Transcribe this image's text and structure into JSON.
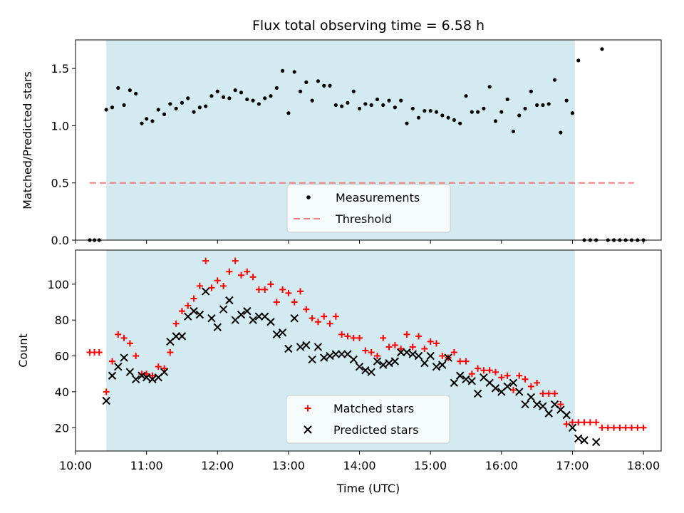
{
  "colors": {
    "observing_window": "#d3eaf0",
    "measurements": "#000000",
    "threshold": "#f08080",
    "matched": "#ff0000",
    "predicted": "#000000"
  },
  "chart_data": [
    {
      "type": "scatter",
      "title": "Flux total observing time = 6.58 h",
      "ylabel": "Matched/Predicted stars",
      "xlim": [
        "10:00",
        "18:15"
      ],
      "ylim": [
        0,
        1.75
      ],
      "yticks": [
        "0.0",
        "0.5",
        "1.0",
        "1.5"
      ],
      "shaded_interval": [
        "10:26",
        "17:02"
      ],
      "legend_placement": "lower-center",
      "legend": {
        "measurements": "Measurements",
        "threshold": "Threshold"
      },
      "threshold": {
        "value": 0.5,
        "x_range": [
          "10:12",
          "17:52"
        ]
      },
      "series": [
        {
          "name": "Measurements",
          "x": [
            "10:12",
            "10:16",
            "10:20",
            "10:26",
            "10:31",
            "10:36",
            "10:41",
            "10:46",
            "10:51",
            "10:56",
            "11:00",
            "11:05",
            "11:10",
            "11:15",
            "11:20",
            "11:25",
            "11:30",
            "11:35",
            "11:40",
            "11:45",
            "11:50",
            "11:55",
            "12:00",
            "12:05",
            "12:10",
            "12:15",
            "12:20",
            "12:25",
            "12:30",
            "12:35",
            "12:40",
            "12:45",
            "12:50",
            "12:55",
            "13:00",
            "13:05",
            "13:10",
            "13:15",
            "13:20",
            "13:25",
            "13:30",
            "13:35",
            "13:40",
            "13:45",
            "13:50",
            "13:55",
            "14:00",
            "14:05",
            "14:10",
            "14:15",
            "14:20",
            "14:25",
            "14:30",
            "14:35",
            "14:40",
            "14:45",
            "14:50",
            "14:55",
            "15:00",
            "15:05",
            "15:10",
            "15:15",
            "15:20",
            "15:25",
            "15:30",
            "15:35",
            "15:40",
            "15:45",
            "15:50",
            "15:55",
            "16:00",
            "16:05",
            "16:10",
            "16:15",
            "16:20",
            "16:25",
            "16:30",
            "16:35",
            "16:40",
            "16:45",
            "16:50",
            "16:55",
            "17:00",
            "17:05",
            "17:10",
            "17:15",
            "17:20",
            "17:25",
            "17:30",
            "17:35",
            "17:40",
            "17:45",
            "17:50",
            "17:55",
            "18:00"
          ],
          "y": [
            0,
            0,
            0,
            1.14,
            1.16,
            1.33,
            1.18,
            1.31,
            1.28,
            1.02,
            1.06,
            1.04,
            1.14,
            1.1,
            1.19,
            1.15,
            1.2,
            1.24,
            1.12,
            1.16,
            1.17,
            1.26,
            1.3,
            1.25,
            1.24,
            1.31,
            1.29,
            1.23,
            1.22,
            1.19,
            1.24,
            1.26,
            1.33,
            1.48,
            1.11,
            1.47,
            1.3,
            1.38,
            1.22,
            1.39,
            1.35,
            1.35,
            1.18,
            1.17,
            1.2,
            1.3,
            1.15,
            1.19,
            1.18,
            1.23,
            1.18,
            1.22,
            1.16,
            1.22,
            1.02,
            1.15,
            1.07,
            1.13,
            1.13,
            1.12,
            1.09,
            1.07,
            1.05,
            1.02,
            1.26,
            1.12,
            1.12,
            1.15,
            1.34,
            1.04,
            1.12,
            1.23,
            0.95,
            1.09,
            1.15,
            1.3,
            1.18,
            1.18,
            1.19,
            1.4,
            0.94,
            1.22,
            1.11,
            1.57,
            0,
            0,
            0,
            1.67,
            0,
            0,
            0,
            0,
            0,
            0,
            0
          ]
        }
      ]
    },
    {
      "type": "scatter",
      "xlabel": "Time (UTC)",
      "ylabel": "Count",
      "xlim": [
        "10:00",
        "18:15"
      ],
      "ylim": [
        7,
        119
      ],
      "yticks": [
        "20",
        "40",
        "60",
        "80",
        "100"
      ],
      "xticks": [
        "10:00",
        "11:00",
        "12:00",
        "13:00",
        "14:00",
        "15:00",
        "16:00",
        "17:00",
        "18:00"
      ],
      "shaded_interval": [
        "10:26",
        "17:02"
      ],
      "legend_placement": "lower-center",
      "series": [
        {
          "name": "Matched stars",
          "x": [
            "10:12",
            "10:16",
            "10:20",
            "10:26",
            "10:31",
            "10:36",
            "10:41",
            "10:46",
            "10:51",
            "10:56",
            "11:00",
            "11:05",
            "11:10",
            "11:15",
            "11:20",
            "11:25",
            "11:30",
            "11:35",
            "11:40",
            "11:45",
            "11:50",
            "11:55",
            "12:00",
            "12:05",
            "12:10",
            "12:15",
            "12:20",
            "12:25",
            "12:30",
            "12:35",
            "12:40",
            "12:45",
            "12:50",
            "12:55",
            "13:00",
            "13:05",
            "13:10",
            "13:15",
            "13:20",
            "13:25",
            "13:30",
            "13:35",
            "13:40",
            "13:45",
            "13:50",
            "13:55",
            "14:00",
            "14:05",
            "14:10",
            "14:15",
            "14:20",
            "14:25",
            "14:30",
            "14:35",
            "14:40",
            "14:45",
            "14:50",
            "14:55",
            "15:00",
            "15:05",
            "15:10",
            "15:15",
            "15:20",
            "15:25",
            "15:30",
            "15:35",
            "15:40",
            "15:45",
            "15:50",
            "15:55",
            "16:00",
            "16:05",
            "16:10",
            "16:15",
            "16:20",
            "16:25",
            "16:30",
            "16:35",
            "16:40",
            "16:45",
            "16:50",
            "16:55",
            "17:00",
            "17:05",
            "17:10",
            "17:15",
            "17:20",
            "17:25",
            "17:30",
            "17:35",
            "17:40",
            "17:45",
            "17:50",
            "17:55",
            "18:00"
          ],
          "y": [
            62,
            62,
            62,
            40,
            57,
            72,
            70,
            67,
            60,
            50,
            50,
            49,
            54,
            53,
            62,
            78,
            85,
            88,
            92,
            99,
            113,
            98,
            102,
            99,
            107,
            113,
            105,
            107,
            104,
            97,
            97,
            100,
            90,
            97,
            95,
            90,
            96,
            86,
            81,
            79,
            82,
            78,
            82,
            72,
            71,
            70,
            70,
            63,
            62,
            60,
            70,
            65,
            66,
            64,
            72,
            65,
            71,
            64,
            68,
            67,
            60,
            59,
            62,
            57,
            57,
            50,
            53,
            52,
            52,
            51,
            48,
            49,
            41,
            49,
            47,
            43,
            45,
            39,
            39,
            39,
            33,
            22,
            23,
            23,
            23,
            23,
            23,
            20,
            20,
            20,
            20,
            20,
            20,
            20,
            20
          ]
        },
        {
          "name": "Predicted stars",
          "x": [
            "10:26",
            "10:31",
            "10:36",
            "10:41",
            "10:46",
            "10:51",
            "10:56",
            "11:00",
            "11:05",
            "11:10",
            "11:15",
            "11:20",
            "11:25",
            "11:30",
            "11:35",
            "11:40",
            "11:45",
            "11:50",
            "11:55",
            "12:00",
            "12:05",
            "12:10",
            "12:15",
            "12:20",
            "12:25",
            "12:30",
            "12:35",
            "12:40",
            "12:45",
            "12:50",
            "12:55",
            "13:00",
            "13:05",
            "13:10",
            "13:15",
            "13:20",
            "13:25",
            "13:30",
            "13:35",
            "13:40",
            "13:45",
            "13:50",
            "13:55",
            "14:00",
            "14:05",
            "14:10",
            "14:15",
            "14:20",
            "14:25",
            "14:30",
            "14:35",
            "14:40",
            "14:45",
            "14:50",
            "14:55",
            "15:00",
            "15:05",
            "15:10",
            "15:15",
            "15:20",
            "15:25",
            "15:30",
            "15:35",
            "15:40",
            "15:45",
            "15:50",
            "15:55",
            "16:00",
            "16:05",
            "16:10",
            "16:15",
            "16:20",
            "16:25",
            "16:30",
            "16:35",
            "16:40",
            "16:45",
            "16:50",
            "16:55",
            "17:00",
            "17:05",
            "17:10",
            "17:20"
          ],
          "y": [
            35,
            49,
            54,
            59,
            51,
            47,
            49,
            48,
            47,
            48,
            51,
            68,
            71,
            71,
            82,
            85,
            83,
            96,
            81,
            76,
            86,
            91,
            80,
            83,
            85,
            80,
            82,
            82,
            79,
            72,
            73,
            64,
            81,
            65,
            66,
            58,
            65,
            59,
            60,
            61,
            61,
            61,
            58,
            54,
            52,
            51,
            57,
            55,
            56,
            57,
            62,
            62,
            61,
            60,
            56,
            60,
            54,
            55,
            59,
            45,
            49,
            47,
            46,
            39,
            48,
            45,
            42,
            40,
            43,
            45,
            40,
            33,
            37,
            33,
            32,
            28,
            33,
            30,
            27,
            20,
            14,
            13,
            12
          ]
        }
      ]
    }
  ]
}
